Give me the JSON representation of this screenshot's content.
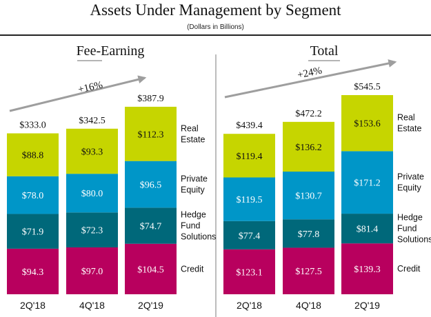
{
  "header": {
    "title": "Assets Under Management by Segment",
    "subtitle": "(Dollars in Billions)"
  },
  "colors": {
    "Real Estate": "#c6d500",
    "Private Equity": "#0096c8",
    "Hedge Fund Solutions": "#00687a",
    "Credit": "#b8005e",
    "arrow": "#9e9e9e"
  },
  "chart_data": [
    {
      "type": "bar",
      "stacked": true,
      "title": "Fee-Earning",
      "categories": [
        "2Q'18",
        "4Q'18",
        "2Q'19"
      ],
      "series": [
        {
          "name": "Credit",
          "label_lines": [
            "Credit"
          ],
          "values": [
            94.3,
            97.0,
            104.5
          ],
          "value_labels": [
            "$94.3",
            "$97.0",
            "$104.5"
          ]
        },
        {
          "name": "Hedge Fund Solutions",
          "label_lines": [
            "Hedge",
            "Fund",
            "Solutions"
          ],
          "values": [
            71.9,
            72.3,
            74.7
          ],
          "value_labels": [
            "$71.9",
            "$72.3",
            "$74.7"
          ]
        },
        {
          "name": "Private Equity",
          "label_lines": [
            "Private",
            "Equity"
          ],
          "values": [
            78.0,
            80.0,
            96.5
          ],
          "value_labels": [
            "$78.0",
            "$80.0",
            "$96.5"
          ]
        },
        {
          "name": "Real Estate",
          "label_lines": [
            "Real",
            "Estate"
          ],
          "values": [
            88.8,
            93.3,
            112.3
          ],
          "value_labels": [
            "$88.8",
            "$93.3",
            "$112.3"
          ]
        }
      ],
      "totals": [
        333.0,
        342.5,
        387.9
      ],
      "total_labels": [
        "$333.0",
        "$342.5",
        "$387.9"
      ],
      "growth_annotation": "+16%",
      "ylim": [
        0,
        390
      ],
      "grid": false,
      "legend": "right"
    },
    {
      "type": "bar",
      "stacked": true,
      "title": "Total",
      "categories": [
        "2Q'18",
        "4Q'18",
        "2Q'19"
      ],
      "series": [
        {
          "name": "Credit",
          "label_lines": [
            "Credit"
          ],
          "values": [
            123.1,
            127.5,
            139.3
          ],
          "value_labels": [
            "$123.1",
            "$127.5",
            "$139.3"
          ]
        },
        {
          "name": "Hedge Fund Solutions",
          "label_lines": [
            "Hedge",
            "Fund",
            "Solutions"
          ],
          "values": [
            77.4,
            77.8,
            81.4
          ],
          "value_labels": [
            "$77.4",
            "$77.8",
            "$81.4"
          ]
        },
        {
          "name": "Private Equity",
          "label_lines": [
            "Private",
            "Equity"
          ],
          "values": [
            119.5,
            130.7,
            171.2
          ],
          "value_labels": [
            "$119.5",
            "$130.7",
            "$171.2"
          ]
        },
        {
          "name": "Real Estate",
          "label_lines": [
            "Real",
            "Estate"
          ],
          "values": [
            119.4,
            136.2,
            153.6
          ],
          "value_labels": [
            "$119.4",
            "$136.2",
            "$153.6"
          ]
        }
      ],
      "totals": [
        439.4,
        472.2,
        545.5
      ],
      "total_labels": [
        "$439.4",
        "$472.2",
        "$545.5"
      ],
      "growth_annotation": "+24%",
      "ylim": [
        0,
        548
      ],
      "grid": false,
      "legend": "right"
    }
  ]
}
